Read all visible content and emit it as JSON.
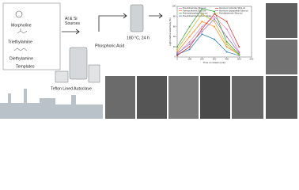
{
  "labels": {
    "morpholine": "Morpholine",
    "triethylamine": "Triethylamine",
    "diethylamine": "Diethylamine",
    "templates": "Templates",
    "sources": "Al & Si\nSources",
    "acid": "Phosphoric Acid",
    "condition": "180 °C, 24 h",
    "autoclave": "Teflon Lined Autoclave"
  },
  "chart_data": {
    "type": "line",
    "x_label": "Time on stream (min)",
    "y_label": "Light olefins selectivity (%)",
    "x": [
      0,
      100,
      200,
      300,
      400,
      500
    ],
    "xlim": [
      0,
      600
    ],
    "xticks": [
      0,
      100,
      200,
      300,
      400,
      500,
      600
    ],
    "ylim": [
      0,
      100
    ],
    "yticks": [
      0,
      20,
      40,
      60,
      80,
      100
    ],
    "series": [
      {
        "name": "Pseudoboehmite Silica sol",
        "color": "#e377c2",
        "values": [
          5,
          30,
          60,
          80,
          55,
          10
        ]
      },
      {
        "name": "Gamma alumina Silica sol",
        "color": "#ff7f0e",
        "values": [
          10,
          40,
          70,
          60,
          20,
          5
        ]
      },
      {
        "name": "Aluminophosphate Silica sol",
        "color": "#2ca02c",
        "values": [
          20,
          60,
          95,
          90,
          30,
          5
        ]
      },
      {
        "name": "Pseudoboehmite Sodium silicate",
        "color": "#1f77b4",
        "values": [
          5,
          15,
          45,
          35,
          10,
          3
        ]
      },
      {
        "name": "Aluminum hydroxide Silica sol",
        "color": "#d62728",
        "values": [
          3,
          20,
          55,
          85,
          70,
          20
        ]
      },
      {
        "name": "Aluminum isopropoxide Silica sol",
        "color": "#9467bd",
        "values": [
          8,
          25,
          50,
          75,
          40,
          8
        ]
      },
      {
        "name": "Pseudoboehmite Silica sol",
        "color": "#bcbd22",
        "values": [
          15,
          50,
          85,
          70,
          25,
          4
        ]
      }
    ]
  }
}
